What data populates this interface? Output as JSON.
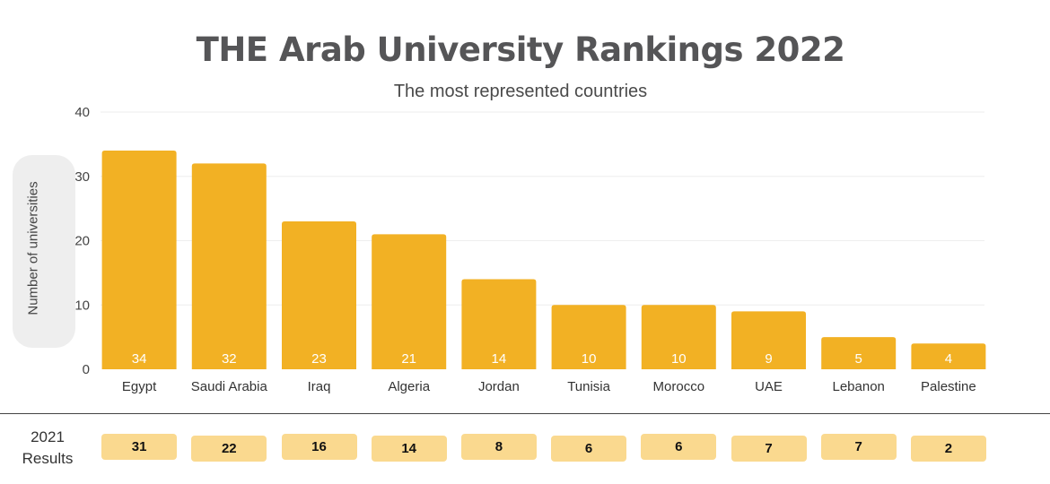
{
  "title": "THE Arab University Rankings 2022",
  "subtitle": "The most represented countries",
  "chart_data": {
    "type": "bar",
    "title": "THE Arab University Rankings 2022",
    "subtitle": "The most represented countries",
    "xlabel": "",
    "ylabel": "Number of universities",
    "ylim": [
      0,
      40
    ],
    "yticks": [
      0,
      10,
      20,
      30,
      40
    ],
    "grid": true,
    "categories": [
      "Egypt",
      "Saudi Arabia",
      "Iraq",
      "Algeria",
      "Jordan",
      "Tunisia",
      "Morocco",
      "UAE",
      "Lebanon",
      "Palestine"
    ],
    "values": [
      34,
      32,
      23,
      21,
      14,
      10,
      10,
      9,
      5,
      4
    ],
    "bar_color": "#f2b124",
    "value_label_color": "#ffffff"
  },
  "results_2021": {
    "label_line1": "2021",
    "label_line2": "Results",
    "values": [
      31,
      22,
      16,
      14,
      8,
      6,
      6,
      7,
      7,
      2
    ],
    "box_color": "#fad98f"
  }
}
